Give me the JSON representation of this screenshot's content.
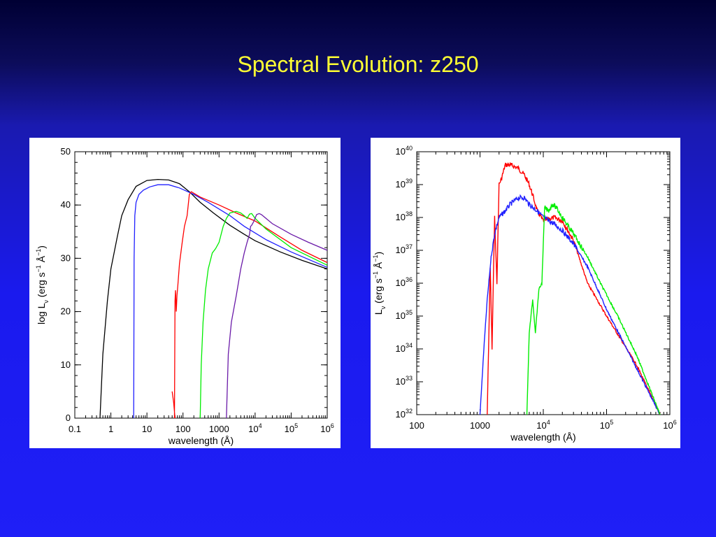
{
  "slide": {
    "title": "Spectral Evolution: z250"
  },
  "colors": {
    "black": "#000000",
    "blue": "#2020ff",
    "red": "#ff0000",
    "green": "#00ee00",
    "purple": "#6a1aa8"
  },
  "chart_data": [
    {
      "type": "line",
      "title": "",
      "xlabel": "wavelength (Å)",
      "ylabel_parts": {
        "pre": "log L",
        "sub": "ν",
        "mid": " (erg s",
        "sup1": "−1",
        "mid2": " Å",
        "sup2": "−1",
        "post": ")"
      },
      "x_scale": "log",
      "xlim": [
        0.1,
        1000000
      ],
      "ylim": [
        0,
        50
      ],
      "x_ticks": [
        {
          "value": 0.1,
          "label": "0.1"
        },
        {
          "value": 1,
          "label": "1"
        },
        {
          "value": 10,
          "label": "10"
        },
        {
          "value": 100,
          "label": "100"
        },
        {
          "value": 1000,
          "label": "1000"
        },
        {
          "value": 10000,
          "base": "10",
          "exp": "4"
        },
        {
          "value": 100000,
          "base": "10",
          "exp": "5"
        },
        {
          "value": 1000000,
          "base": "10",
          "exp": "6"
        }
      ],
      "y_ticks": [
        {
          "value": 0,
          "label": "0"
        },
        {
          "value": 10,
          "label": "10"
        },
        {
          "value": 20,
          "label": "20"
        },
        {
          "value": 30,
          "label": "30"
        },
        {
          "value": 40,
          "label": "40"
        },
        {
          "value": 50,
          "label": "50"
        }
      ],
      "series": [
        {
          "color": "#000000",
          "points": [
            [
              0.5,
              0
            ],
            [
              0.6,
              12
            ],
            [
              0.8,
              22
            ],
            [
              1,
              28
            ],
            [
              1.5,
              34
            ],
            [
              2,
              38
            ],
            [
              3,
              41
            ],
            [
              5,
              43.5
            ],
            [
              10,
              44.6
            ],
            [
              20,
              44.8
            ],
            [
              40,
              44.7
            ],
            [
              80,
              44
            ],
            [
              150,
              42.5
            ],
            [
              300,
              40.5
            ],
            [
              700,
              38.5
            ],
            [
              2000,
              36.2
            ],
            [
              5000,
              34.5
            ],
            [
              10000,
              33.3
            ],
            [
              50000,
              31.2
            ],
            [
              200000,
              29.6
            ],
            [
              1000000,
              28
            ]
          ]
        },
        {
          "color": "#2020ff",
          "points": [
            [
              4.3,
              0
            ],
            [
              4.4,
              30
            ],
            [
              4.6,
              38
            ],
            [
              5,
              40.5
            ],
            [
              6,
              42
            ],
            [
              8,
              42.8
            ],
            [
              12,
              43.4
            ],
            [
              20,
              43.8
            ],
            [
              40,
              43.8
            ],
            [
              80,
              43.2
            ],
            [
              200,
              42
            ],
            [
              500,
              40.5
            ],
            [
              2000,
              38
            ],
            [
              5000,
              36
            ],
            [
              20000,
              33.5
            ],
            [
              100000,
              31.2
            ],
            [
              1000000,
              28.3
            ]
          ]
        },
        {
          "color": "#ff0000",
          "points": [
            [
              50,
              5
            ],
            [
              55,
              3
            ],
            [
              60,
              0
            ],
            [
              58,
              0
            ],
            [
              60,
              22
            ],
            [
              62,
              24
            ],
            [
              65,
              20
            ],
            [
              68,
              23
            ],
            [
              72,
              25
            ],
            [
              80,
              29
            ],
            [
              95,
              33
            ],
            [
              110,
              36
            ],
            [
              130,
              38
            ],
            [
              150,
              42
            ],
            [
              170,
              42.5
            ],
            [
              300,
              41.5
            ],
            [
              1000,
              40
            ],
            [
              3000,
              38.5
            ],
            [
              10000,
              37
            ],
            [
              50000,
              34
            ],
            [
              200000,
              31.5
            ],
            [
              1000000,
              29.2
            ]
          ]
        },
        {
          "color": "#00ee00",
          "points": [
            [
              300,
              0
            ],
            [
              320,
              10
            ],
            [
              360,
              18
            ],
            [
              420,
              24
            ],
            [
              500,
              28
            ],
            [
              650,
              31
            ],
            [
              800,
              31.8
            ],
            [
              1000,
              33
            ],
            [
              1300,
              36
            ],
            [
              1600,
              37.5
            ],
            [
              2000,
              38.5
            ],
            [
              3000,
              38.8
            ],
            [
              4000,
              38.5
            ],
            [
              5000,
              38
            ],
            [
              6000,
              37.5
            ],
            [
              7000,
              38.3
            ],
            [
              8000,
              38.4
            ],
            [
              10000,
              37.5
            ],
            [
              20000,
              35.5
            ],
            [
              100000,
              32
            ],
            [
              1000000,
              28.7
            ]
          ]
        },
        {
          "color": "#6a1aa8",
          "points": [
            [
              1600,
              0
            ],
            [
              1800,
              12
            ],
            [
              2200,
              18
            ],
            [
              3000,
              23
            ],
            [
              4000,
              28
            ],
            [
              5000,
              31
            ],
            [
              6000,
              33
            ],
            [
              7000,
              34.5
            ],
            [
              7500,
              36
            ],
            [
              8000,
              36.2
            ],
            [
              9000,
              36.8
            ],
            [
              11000,
              38.2
            ],
            [
              13000,
              38.4
            ],
            [
              15000,
              38.2
            ],
            [
              30000,
              36.5
            ],
            [
              100000,
              34.5
            ],
            [
              300000,
              33
            ],
            [
              1000000,
              31.5
            ]
          ]
        }
      ]
    },
    {
      "type": "line",
      "title": "",
      "xlabel": "wavelength (Å)",
      "ylabel_parts": {
        "pre": "L",
        "sub": "ν",
        "mid": " (erg s",
        "sup1": "−1",
        "mid2": " Å",
        "sup2": "−1",
        "post": ")"
      },
      "x_scale": "log",
      "y_scale": "log",
      "xlim": [
        100,
        1000000
      ],
      "ylim_log10": [
        32,
        40
      ],
      "x_ticks": [
        {
          "value": 100,
          "label": "100"
        },
        {
          "value": 1000,
          "label": "1000"
        },
        {
          "value": 10000,
          "base": "10",
          "exp": "4"
        },
        {
          "value": 100000,
          "base": "10",
          "exp": "5"
        },
        {
          "value": 1000000,
          "base": "10",
          "exp": "6"
        }
      ],
      "y_ticks": [
        {
          "value": 32,
          "base": "10",
          "exp": "32"
        },
        {
          "value": 33,
          "base": "10",
          "exp": "33"
        },
        {
          "value": 34,
          "base": "10",
          "exp": "34"
        },
        {
          "value": 35,
          "base": "10",
          "exp": "35"
        },
        {
          "value": 36,
          "base": "10",
          "exp": "36"
        },
        {
          "value": 37,
          "base": "10",
          "exp": "37"
        },
        {
          "value": 38,
          "base": "10",
          "exp": "38"
        },
        {
          "value": 39,
          "base": "10",
          "exp": "39"
        },
        {
          "value": 40,
          "base": "10",
          "exp": "40"
        }
      ],
      "series": [
        {
          "color": "#ff0000",
          "noisy": true,
          "points": [
            [
              1300,
              32
            ],
            [
              1450,
              36.5
            ],
            [
              1550,
              34
            ],
            [
              1700,
              38
            ],
            [
              1850,
              36
            ],
            [
              2000,
              39
            ],
            [
              2200,
              39.2
            ],
            [
              2500,
              39.6
            ],
            [
              3000,
              39.6
            ],
            [
              4000,
              39.5
            ],
            [
              5000,
              39.3
            ],
            [
              6000,
              39
            ],
            [
              7000,
              38.6
            ],
            [
              8000,
              38.2
            ],
            [
              10000,
              37.9
            ],
            [
              15000,
              38
            ],
            [
              20000,
              37.9
            ],
            [
              30000,
              37.3
            ],
            [
              50000,
              36
            ],
            [
              100000,
              35
            ],
            [
              300000,
              33.5
            ],
            [
              700000,
              32
            ]
          ]
        },
        {
          "color": "#2020ff",
          "noisy": true,
          "points": [
            [
              1000,
              32
            ],
            [
              1150,
              34
            ],
            [
              1300,
              35.5
            ],
            [
              1500,
              36.8
            ],
            [
              1700,
              37.5
            ],
            [
              2000,
              38
            ],
            [
              2500,
              38.2
            ],
            [
              3000,
              38.4
            ],
            [
              4000,
              38.6
            ],
            [
              5000,
              38.6
            ],
            [
              6000,
              38.4
            ],
            [
              8000,
              38.2
            ],
            [
              10000,
              38
            ],
            [
              15000,
              37.8
            ],
            [
              20000,
              37.6
            ],
            [
              30000,
              37.2
            ],
            [
              50000,
              36.5
            ],
            [
              100000,
              35.2
            ],
            [
              300000,
              33.4
            ],
            [
              700000,
              32
            ]
          ]
        },
        {
          "color": "#00ee00",
          "noisy": true,
          "points": [
            [
              5500,
              32
            ],
            [
              6000,
              34.5
            ],
            [
              6800,
              35.5
            ],
            [
              7500,
              34.5
            ],
            [
              8500,
              35.8
            ],
            [
              9500,
              36
            ],
            [
              10500,
              38.3
            ],
            [
              12000,
              38.2
            ],
            [
              14000,
              38.4
            ],
            [
              16000,
              38.3
            ],
            [
              20000,
              38
            ],
            [
              30000,
              37.5
            ],
            [
              50000,
              36.8
            ],
            [
              80000,
              36
            ],
            [
              150000,
              35
            ],
            [
              300000,
              33.8
            ],
            [
              700000,
              32
            ]
          ]
        }
      ]
    }
  ]
}
